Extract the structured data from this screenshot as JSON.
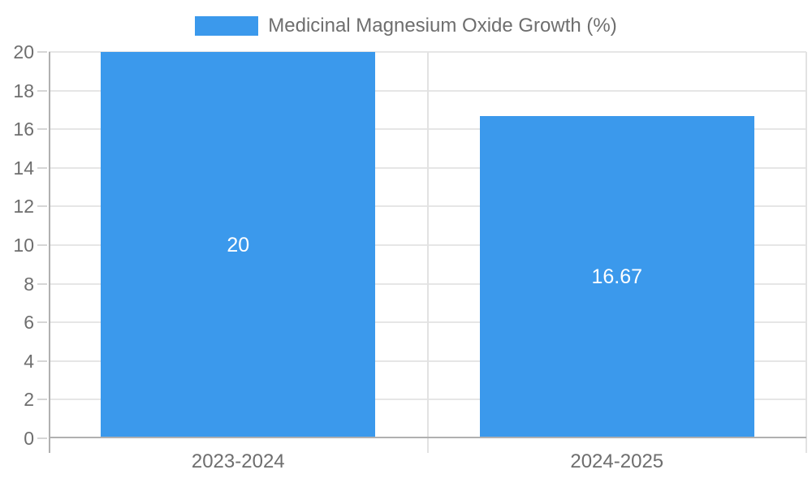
{
  "chart_data": {
    "type": "bar",
    "categories": [
      "2023-2024",
      "2024-2025"
    ],
    "series": [
      {
        "name": "Medicinal Magnesium Oxide Growth (%)",
        "values": [
          20,
          16.67
        ],
        "color": "#3b99ec"
      }
    ],
    "value_labels": [
      "20",
      "16.67"
    ],
    "title": "",
    "xlabel": "",
    "ylabel": "",
    "ylim": [
      0,
      20
    ],
    "ytick_step": 2,
    "yticks": [
      0,
      2,
      4,
      6,
      8,
      10,
      12,
      14,
      16,
      18,
      20
    ],
    "grid": true,
    "legend_position": "top-center"
  },
  "colors": {
    "bar": "#3b99ec",
    "grid_horizontal": "#e6e6e6",
    "grid_vertical": "#e2e2e2",
    "axis": "#b0b0b0",
    "tick": "#d6d6d6",
    "text": "#6e6e6e",
    "value_text": "#ffffff",
    "background": "#ffffff"
  }
}
